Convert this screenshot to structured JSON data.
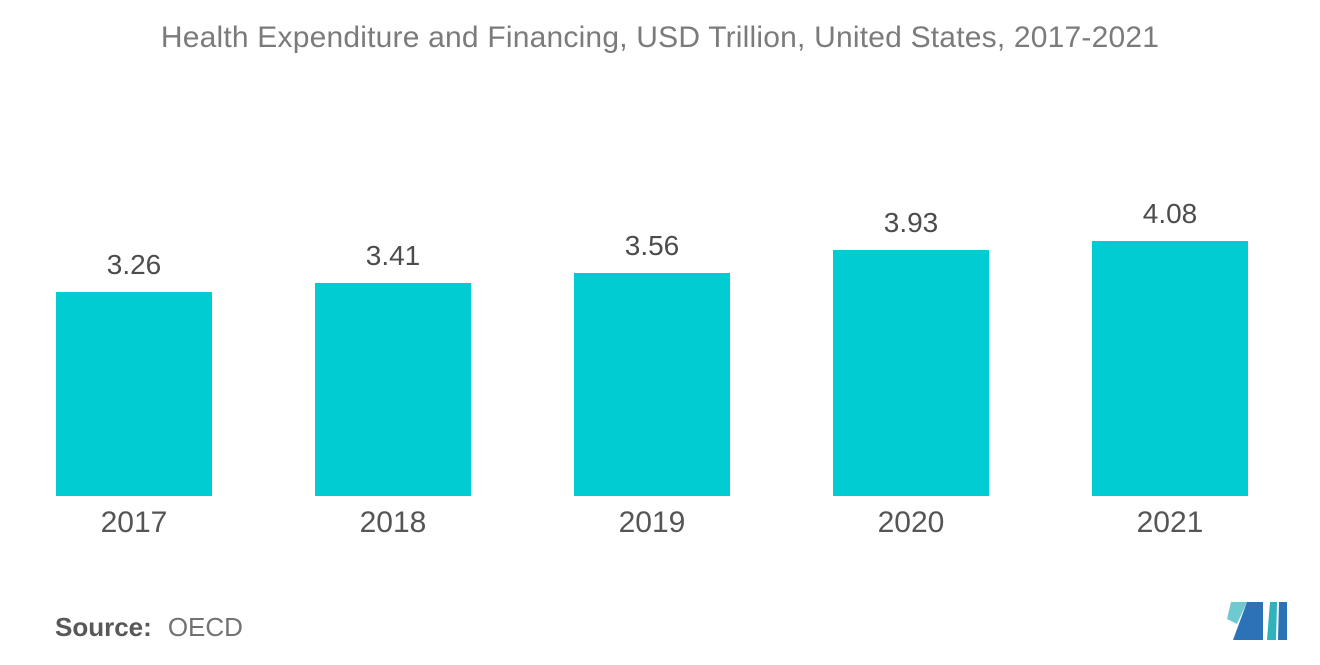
{
  "title": "Health Expenditure and Financing, USD Trillion, United States, 2017-2021",
  "source": {
    "label": "Source:",
    "value": "OECD"
  },
  "logo": {
    "name": "mordor-intelligence-logo"
  },
  "colors": {
    "bar": "#00CCD2",
    "title_text": "#7B7B7B",
    "label_text": "#4C4C4C",
    "logo_dark_blue": "#2B73B6",
    "logo_light_teal": "#6EC9D1",
    "logo_teal": "#2EB2BC"
  },
  "chart_data": {
    "type": "bar",
    "title": "Health Expenditure and Financing, USD Trillion, United States, 2017-2021",
    "categories": [
      "2017",
      "2018",
      "2019",
      "2020",
      "2021"
    ],
    "values": [
      3.26,
      3.41,
      3.56,
      3.93,
      4.08
    ],
    "bar_labels": [
      "3.26",
      "3.41",
      "3.56",
      "3.93",
      "4.08"
    ],
    "series": [
      {
        "name": "Health Expenditure (USD Trillion)",
        "values": [
          3.26,
          3.41,
          3.56,
          3.93,
          4.08
        ]
      }
    ],
    "xlabel": "",
    "ylabel": "",
    "ylim": [
      0,
      4.5
    ],
    "grid": false,
    "legend": false,
    "bar_color": "#00CCD2",
    "value_labels_position": "above-bars",
    "source": "OECD"
  }
}
